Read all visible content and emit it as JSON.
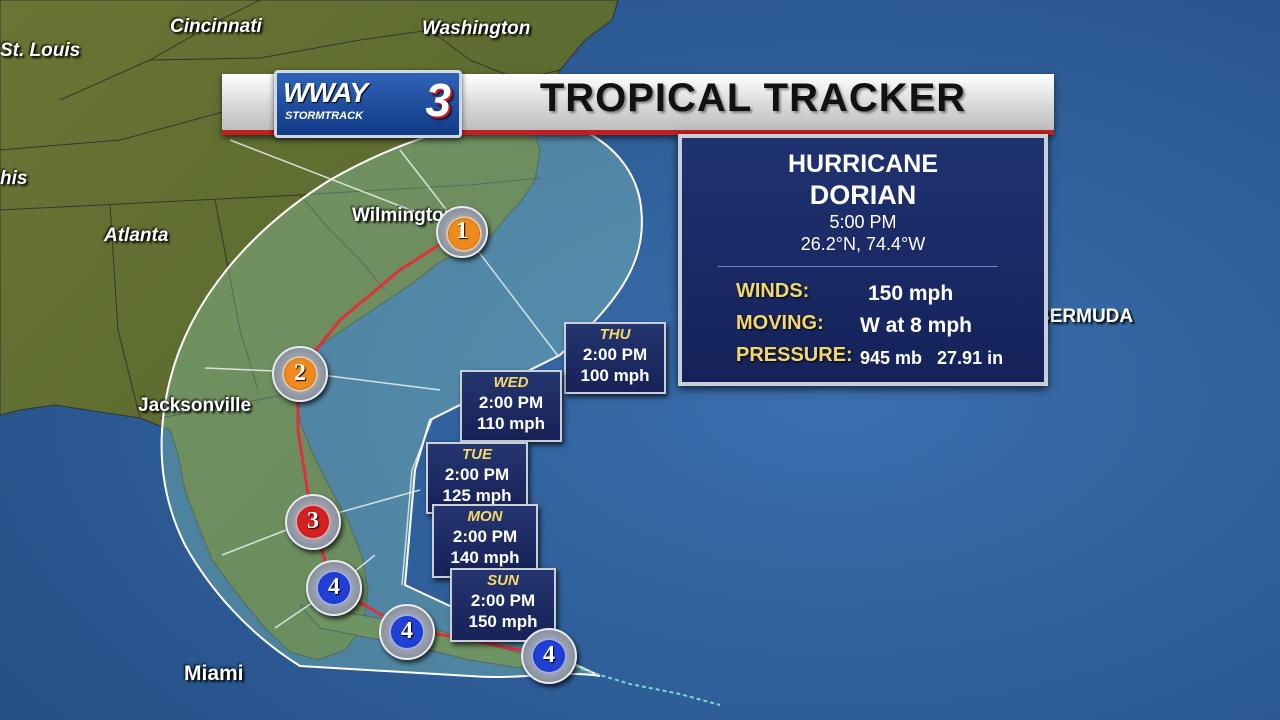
{
  "header": {
    "logo_main": "WWAY",
    "logo_number": "3",
    "logo_sub": "STORMTRACK",
    "title": "TROPICAL TRACKER"
  },
  "info_box": {
    "type": "HURRICANE",
    "name": "DORIAN",
    "time": "5:00 PM",
    "position": "26.2°N, 74.4°W",
    "winds_label": "WINDS:",
    "winds_value": "150 mph",
    "moving_label": "MOVING:",
    "moving_value": "W at 8 mph",
    "pressure_label": "PRESSURE:",
    "pressure_value": "945 mb   27.91 in"
  },
  "cities": {
    "st_louis": "St. Louis",
    "cincinnati": "Cincinnati",
    "washington": "Washington",
    "memphis_partial": "his",
    "atlanta": "Atlanta",
    "wilmington": "Wilmington",
    "jacksonville": "Jacksonville",
    "miami": "Miami",
    "bermuda": "BERMUDA"
  },
  "forecast": [
    {
      "day": "THU",
      "time": "2:00 PM",
      "wind": "100 mph"
    },
    {
      "day": "WED",
      "time": "2:00 PM",
      "wind": "110 mph"
    },
    {
      "day": "TUE",
      "time": "2:00 PM",
      "wind": "125 mph"
    },
    {
      "day": "MON",
      "time": "2:00 PM",
      "wind": "140 mph"
    },
    {
      "day": "SUN",
      "time": "2:00 PM",
      "wind": "150 mph"
    }
  ],
  "storm_markers": [
    {
      "category": "4",
      "color": "#1f3fd6"
    },
    {
      "category": "4",
      "color": "#1f3fd6"
    },
    {
      "category": "4",
      "color": "#1f3fd6"
    },
    {
      "category": "3",
      "color": "#d42020"
    },
    {
      "category": "2",
      "color": "#f08a1a"
    },
    {
      "category": "1",
      "color": "#f08a1a"
    }
  ],
  "colors": {
    "ocean": "#2f5f9a",
    "land": "#5c6a2e",
    "track": "#e0303a",
    "cone": "#7fc0a8",
    "panel": "#1f3270",
    "label_gold": "#f5d86a"
  }
}
